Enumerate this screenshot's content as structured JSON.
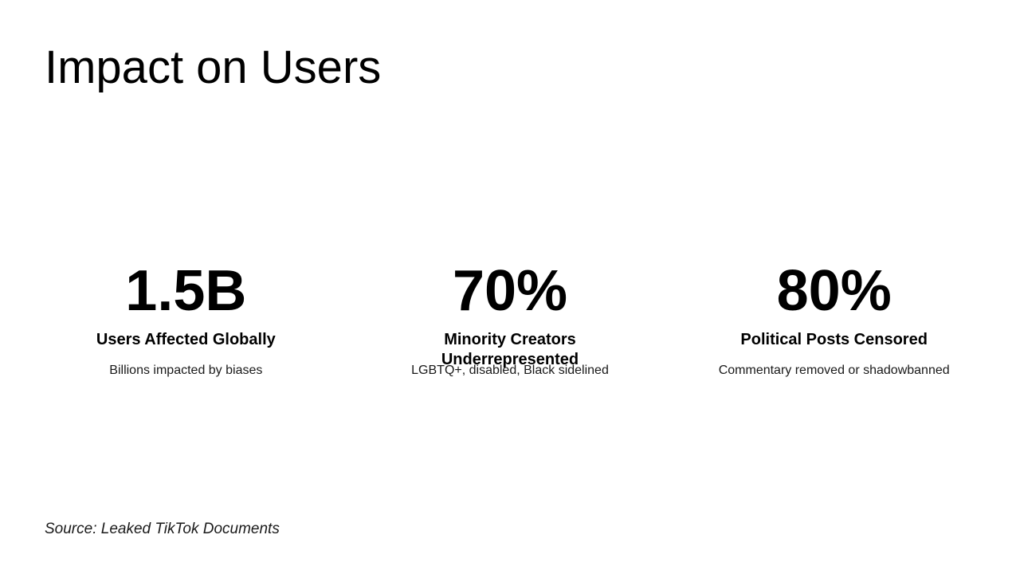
{
  "slide": {
    "title": "Impact on Users",
    "stats": [
      {
        "value": "1.5B",
        "label": "Users Affected Globally",
        "description": "Billions impacted by biases"
      },
      {
        "value": "70%",
        "label": "Minority Creators Underrepresented",
        "description": "LGBTQ+, disabled, Black sidelined"
      },
      {
        "value": "80%",
        "label": "Political Posts Censored",
        "description": "Commentary removed or shadowbanned"
      }
    ],
    "source": "Source: Leaked TikTok Documents"
  },
  "colors": {
    "background": "#ffffff",
    "primary_text": "#000000",
    "secondary_text": "#1a1a1a"
  }
}
